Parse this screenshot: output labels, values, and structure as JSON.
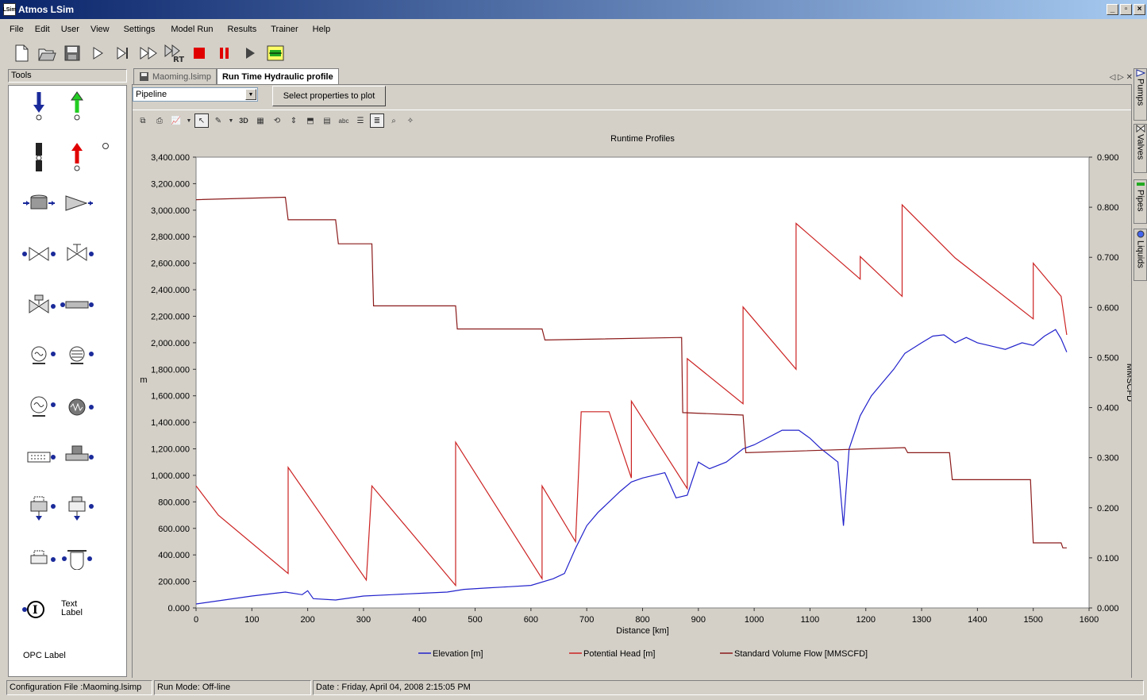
{
  "window": {
    "title": "Atmos LSim",
    "app_icon": "LSim",
    "min": "_",
    "max": "▫",
    "close": "×"
  },
  "menu": [
    "File",
    "Edit",
    "User",
    "View",
    "Settings",
    "Model Run",
    "Results",
    "Trainer",
    "Help"
  ],
  "tools": {
    "header": "Tools",
    "text_label": "Text\nLabel",
    "opc_label": "OPC Label"
  },
  "tabs": [
    {
      "label": "Maoming.lsimp"
    },
    {
      "label": "Run Time Hydraulic profile"
    }
  ],
  "doc": {
    "select_value": "Pipeline",
    "select_button": "Select properties to plot"
  },
  "right_tabs": [
    "Pumps",
    "Valves",
    "Pipes",
    "Liquids"
  ],
  "status": {
    "config": "Configuration File :Maoming.lsimp",
    "mode": "Run Mode: Off-line",
    "date": "Date : Friday, April 04, 2008 2:15:05 PM"
  },
  "colors": {
    "elevation": "#2222cc",
    "potential": "#cc2222",
    "flow": "#8b1a1a"
  },
  "chart_data": {
    "type": "line",
    "title": "Runtime Profiles",
    "xlabel": "Distance [km]",
    "ylabel_left": "m",
    "ylabel_right": "MMSCFD",
    "xlim": [
      0,
      1600
    ],
    "ylim_left": [
      0,
      3400
    ],
    "ylim_right": [
      0,
      0.9
    ],
    "x_ticks": [
      "0",
      "100",
      "200",
      "300",
      "400",
      "500",
      "600",
      "700",
      "800",
      "900",
      "1000",
      "1100",
      "1200",
      "1300",
      "1400",
      "1500",
      "1600"
    ],
    "y_ticks_left": [
      "0.000",
      "200.000",
      "400.000",
      "600.000",
      "800.000",
      "1,000.000",
      "1,200.000",
      "1,400.000",
      "1,600.000",
      "1,800.000",
      "2,000.000",
      "2,200.000",
      "2,400.000",
      "2,600.000",
      "2,800.000",
      "3,000.000",
      "3,200.000",
      "3,400.000"
    ],
    "y_ticks_right": [
      "0.000",
      "0.100",
      "0.200",
      "0.300",
      "0.400",
      "0.500",
      "0.600",
      "0.700",
      "0.800",
      "0.900"
    ],
    "legend": [
      "Elevation [m]",
      "Potential Head [m]",
      "Standard Volume Flow [MMSCFD]"
    ],
    "legend_position": "bottom",
    "series": [
      {
        "name": "Elevation [m]",
        "axis": "left",
        "points": [
          [
            0,
            30
          ],
          [
            50,
            60
          ],
          [
            100,
            90
          ],
          [
            140,
            110
          ],
          [
            160,
            120
          ],
          [
            190,
            100
          ],
          [
            200,
            130
          ],
          [
            210,
            70
          ],
          [
            250,
            60
          ],
          [
            300,
            90
          ],
          [
            350,
            100
          ],
          [
            400,
            110
          ],
          [
            450,
            120
          ],
          [
            480,
            140
          ],
          [
            520,
            150
          ],
          [
            560,
            160
          ],
          [
            600,
            170
          ],
          [
            640,
            220
          ],
          [
            660,
            260
          ],
          [
            680,
            450
          ],
          [
            700,
            620
          ],
          [
            720,
            720
          ],
          [
            740,
            800
          ],
          [
            760,
            880
          ],
          [
            780,
            950
          ],
          [
            800,
            980
          ],
          [
            820,
            1000
          ],
          [
            840,
            1020
          ],
          [
            860,
            830
          ],
          [
            880,
            850
          ],
          [
            900,
            1100
          ],
          [
            920,
            1050
          ],
          [
            950,
            1100
          ],
          [
            980,
            1200
          ],
          [
            1000,
            1230
          ],
          [
            1050,
            1340
          ],
          [
            1080,
            1340
          ],
          [
            1100,
            1280
          ],
          [
            1120,
            1200
          ],
          [
            1150,
            1100
          ],
          [
            1160,
            620
          ],
          [
            1170,
            1200
          ],
          [
            1190,
            1450
          ],
          [
            1210,
            1600
          ],
          [
            1230,
            1700
          ],
          [
            1250,
            1800
          ],
          [
            1270,
            1920
          ],
          [
            1300,
            2000
          ],
          [
            1320,
            2050
          ],
          [
            1340,
            2060
          ],
          [
            1360,
            2000
          ],
          [
            1380,
            2040
          ],
          [
            1400,
            2000
          ],
          [
            1420,
            1980
          ],
          [
            1450,
            1950
          ],
          [
            1480,
            2000
          ],
          [
            1500,
            1980
          ],
          [
            1520,
            2050
          ],
          [
            1540,
            2100
          ],
          [
            1550,
            2030
          ],
          [
            1560,
            1930
          ]
        ]
      },
      {
        "name": "Potential Head [m]",
        "axis": "left",
        "points": [
          [
            0,
            920
          ],
          [
            40,
            700
          ],
          [
            165,
            260
          ],
          [
            165,
            1060
          ],
          [
            305,
            210
          ],
          [
            315,
            920
          ],
          [
            465,
            170
          ],
          [
            465,
            1250
          ],
          [
            620,
            220
          ],
          [
            620,
            920
          ],
          [
            680,
            500
          ],
          [
            690,
            1480
          ],
          [
            740,
            1480
          ],
          [
            780,
            980
          ],
          [
            780,
            1560
          ],
          [
            880,
            900
          ],
          [
            880,
            1880
          ],
          [
            980,
            1540
          ],
          [
            980,
            2270
          ],
          [
            1075,
            1800
          ],
          [
            1075,
            2900
          ],
          [
            1190,
            2480
          ],
          [
            1190,
            2650
          ],
          [
            1265,
            2350
          ],
          [
            1265,
            3040
          ],
          [
            1360,
            2640
          ],
          [
            1500,
            2180
          ],
          [
            1500,
            2600
          ],
          [
            1550,
            2350
          ],
          [
            1560,
            2060
          ]
        ]
      },
      {
        "name": "Standard Volume Flow [MMSCFD]",
        "axis": "right",
        "points": [
          [
            0,
            0.815
          ],
          [
            160,
            0.82
          ],
          [
            165,
            0.775
          ],
          [
            250,
            0.775
          ],
          [
            255,
            0.727
          ],
          [
            315,
            0.727
          ],
          [
            318,
            0.603
          ],
          [
            465,
            0.603
          ],
          [
            468,
            0.557
          ],
          [
            620,
            0.557
          ],
          [
            625,
            0.535
          ],
          [
            870,
            0.54
          ],
          [
            872,
            0.39
          ],
          [
            980,
            0.385
          ],
          [
            985,
            0.31
          ],
          [
            1270,
            0.32
          ],
          [
            1275,
            0.31
          ],
          [
            1350,
            0.31
          ],
          [
            1355,
            0.256
          ],
          [
            1495,
            0.256
          ],
          [
            1500,
            0.13
          ],
          [
            1550,
            0.13
          ],
          [
            1553,
            0.12
          ],
          [
            1560,
            0.12
          ]
        ]
      }
    ]
  }
}
